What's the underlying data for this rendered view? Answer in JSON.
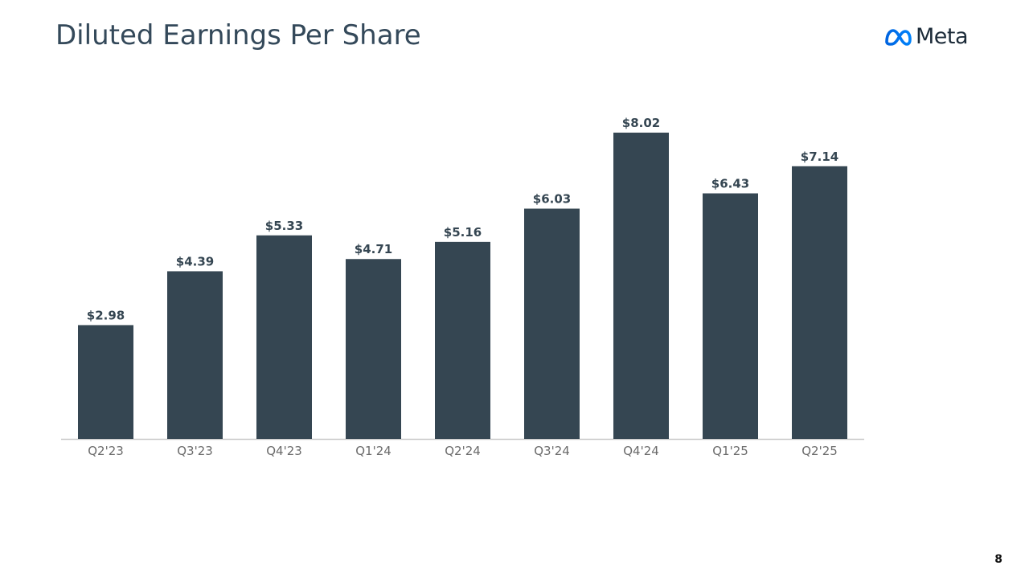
{
  "slide": {
    "title": "Diluted Earnings Per Share",
    "logo_text": "Meta",
    "logo_icon": "meta-infinity-logo-icon",
    "page_number": "8"
  },
  "colors": {
    "bar": "#354652",
    "title": "#34495a",
    "tick": "#6b6b6b",
    "baseline": "#c8c8c8"
  },
  "chart_data": {
    "type": "bar",
    "categories": [
      "Q2'23",
      "Q3'23",
      "Q4'23",
      "Q1'24",
      "Q2'24",
      "Q3'24",
      "Q4'24",
      "Q1'25",
      "Q2'25"
    ],
    "values": [
      2.98,
      4.39,
      5.33,
      4.71,
      5.16,
      6.03,
      8.02,
      6.43,
      7.14
    ],
    "value_labels": [
      "$2.98",
      "$4.39",
      "$5.33",
      "$4.71",
      "$5.16",
      "$6.03",
      "$8.02",
      "$6.43",
      "$7.14"
    ],
    "title": "Diluted Earnings Per Share",
    "xlabel": "",
    "ylabel": "",
    "ylim": [
      0,
      8.02
    ],
    "grid": false,
    "legend": "none"
  }
}
